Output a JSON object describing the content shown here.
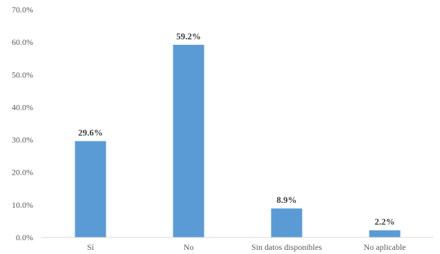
{
  "chart_data": {
    "type": "bar",
    "categories": [
      "Sí",
      "No",
      "Sin datos disponibles",
      "No aplicable"
    ],
    "values": [
      29.6,
      59.2,
      8.9,
      2.2
    ],
    "data_labels": [
      "29.6%",
      "59.2%",
      "8.9%",
      "2.2%"
    ],
    "y_ticks": [
      "0.0%",
      "10.0%",
      "20.0%",
      "30.0%",
      "40.0%",
      "50.0%",
      "60.0%",
      "70.0%"
    ],
    "ylim": [
      0,
      70
    ],
    "grid": false,
    "legend": "none",
    "title": "",
    "xlabel": "",
    "ylabel": "",
    "colors": {
      "bar": "#5b9bd5",
      "axis": "#d9d9d9"
    }
  }
}
